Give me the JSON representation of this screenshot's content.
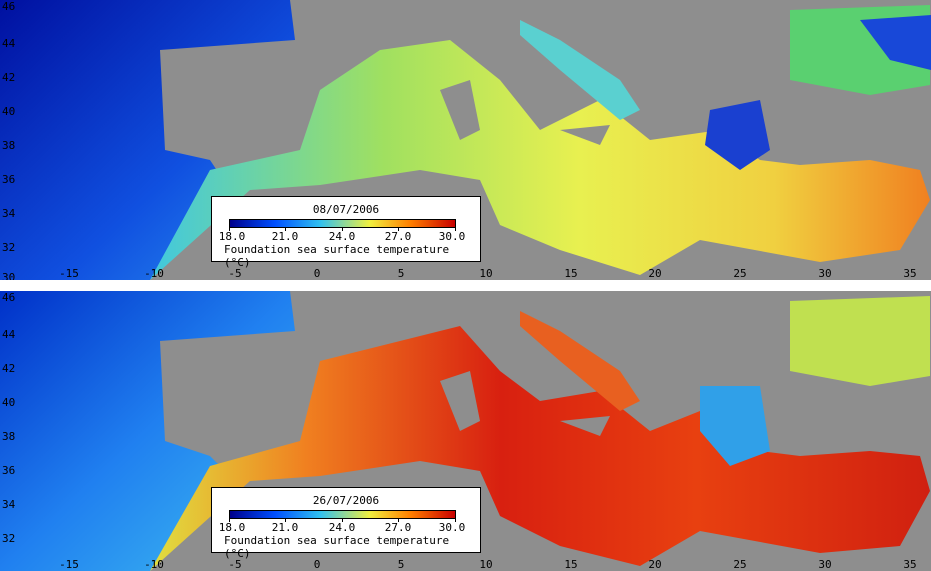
{
  "panels": [
    {
      "date": "08/07/2006",
      "scenario": "cooler",
      "colorbar": {
        "ticks": [
          "18.0",
          "21.0",
          "24.0",
          "27.0",
          "30.0"
        ],
        "title": "Foundation sea surface temperature (°C)"
      }
    },
    {
      "date": "26/07/2006",
      "scenario": "warmer",
      "colorbar": {
        "ticks": [
          "18.0",
          "21.0",
          "24.0",
          "27.0",
          "30.0"
        ],
        "title": "Foundation sea surface temperature (°C)"
      }
    }
  ],
  "latitude_labels": [
    "46",
    "44",
    "42",
    "40",
    "38",
    "36",
    "34",
    "32",
    "30"
  ],
  "longitude_labels": [
    "-15",
    "-10",
    "-5",
    "0",
    "5",
    "10",
    "15",
    "20",
    "25",
    "30",
    "35"
  ],
  "colors": {
    "scale": [
      "#00008c",
      "#0050ff",
      "#30c0f0",
      "#f0f040",
      "#ff8000",
      "#c80000"
    ],
    "land": "#9a9a9a",
    "background": "#ffffff"
  }
}
